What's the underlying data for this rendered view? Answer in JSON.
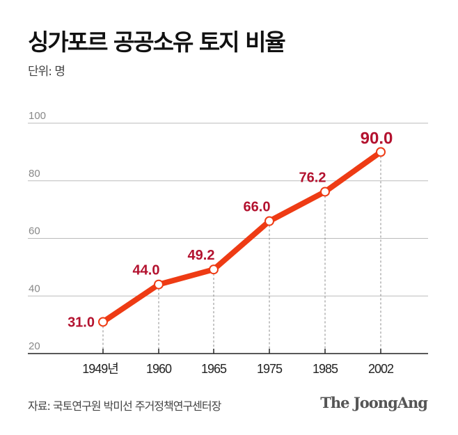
{
  "chart_data": {
    "type": "line",
    "title": "싱가포르 공공소유 토지 비율",
    "subtitle": "단위: 명",
    "categories": [
      "1949년",
      "1960",
      "1965",
      "1975",
      "1985",
      "2002"
    ],
    "values": [
      31.0,
      44.0,
      49.2,
      66.0,
      76.2,
      90.0
    ],
    "data_labels": [
      "31.0",
      "44.0",
      "49.2",
      "66.0",
      "76.2",
      "90.0"
    ],
    "ylim": [
      20,
      100
    ],
    "yticks": [
      20,
      40,
      60,
      80,
      100
    ],
    "grid": true,
    "colors": {
      "line": "#ee3b14",
      "label": "#b3122f",
      "grid": "#bbbbbb"
    }
  },
  "source": "자료: 국토연구원 박미선 주거정책연구센터장",
  "logo": "The JoongAng"
}
